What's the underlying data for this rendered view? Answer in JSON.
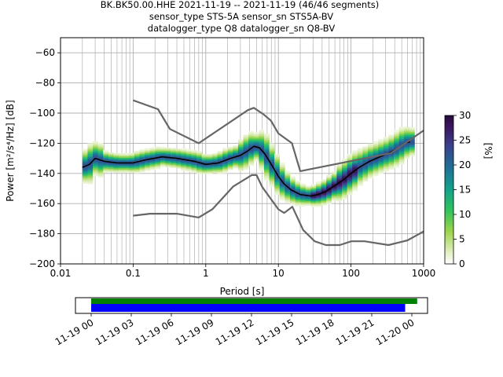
{
  "header": {
    "line1": "BK.BK50.00.HHE   2021-11-19 -- 2021-11-19  (46/46 segments)",
    "line2": "sensor_type STS-5A sensor_sn STS5A-BV",
    "line3": "datalogger_type Q8 datalogger_sn Q8-BV"
  },
  "chart_data": [
    {
      "type": "heatmap",
      "title": "",
      "xlabel": "Period [s]",
      "ylabel": "Power [m²/s⁴/Hz] [dB]",
      "xscale": "log",
      "xlim": [
        0.01,
        1000
      ],
      "ylim": [
        -200,
        -50
      ],
      "xticks": [
        0.01,
        0.1,
        1,
        10,
        100,
        1000
      ],
      "xtick_labels": [
        "0.01",
        "0.1",
        "1",
        "10",
        "100",
        "1000"
      ],
      "yticks": [
        -200,
        -180,
        -160,
        -140,
        -120,
        -100,
        -80,
        -60
      ],
      "ytick_labels": [
        "−200",
        "−180",
        "−160",
        "−140",
        "−120",
        "−100",
        "−80",
        "−60"
      ],
      "grid": true,
      "colorbar": {
        "label": "[%]",
        "range": [
          0,
          30
        ],
        "ticks": [
          0,
          5,
          10,
          15,
          20,
          25,
          30
        ],
        "tick_labels": [
          "0",
          "5",
          "10",
          "15",
          "20",
          "25",
          "30"
        ],
        "colormap": "pqlx"
      },
      "series": [
        {
          "kind": "mean",
          "color": "#000000",
          "x": [
            0.02,
            0.025,
            0.03,
            0.04,
            0.06,
            0.1,
            0.15,
            0.25,
            0.4,
            0.7,
            1.0,
            1.5,
            2.2,
            3.0,
            3.8,
            4.6,
            5.5,
            6.5,
            8,
            10,
            12,
            15,
            20,
            28,
            35,
            45,
            60,
            80,
            100,
            130,
            180,
            250,
            350,
            450,
            550,
            650
          ],
          "y": [
            -136,
            -134,
            -130,
            -132,
            -133,
            -133,
            -131,
            -129,
            -130,
            -132,
            -134,
            -133,
            -130,
            -128,
            -125,
            -122,
            -123,
            -127,
            -134,
            -142,
            -147,
            -151,
            -154,
            -155,
            -154,
            -152,
            -148,
            -144,
            -140,
            -136,
            -132,
            -129,
            -126,
            -123,
            -120,
            -119
          ]
        },
        {
          "kind": "noise-model-high",
          "color": "#666666",
          "x": [
            0.1,
            0.22,
            0.32,
            0.8,
            3.8,
            4.6,
            6.3,
            7.9,
            10,
            15.4,
            20,
            354.8,
            1000
          ],
          "y": [
            -91.5,
            -97.4,
            -110.5,
            -120,
            -98,
            -96.5,
            -101,
            -105,
            -113.5,
            -120,
            -138.5,
            -126.5,
            -111.5
          ]
        },
        {
          "kind": "noise-model-low",
          "color": "#666666",
          "x": [
            0.1,
            0.17,
            0.4,
            0.8,
            1.24,
            2.4,
            4.3,
            5.0,
            6.0,
            10,
            12,
            15.6,
            21.9,
            31.6,
            45,
            70,
            101,
            154,
            328,
            600,
            1000
          ],
          "y": [
            -168,
            -166.7,
            -166.7,
            -169.2,
            -163.7,
            -148.6,
            -141.1,
            -141.1,
            -149,
            -163.8,
            -166.2,
            -162.1,
            -177.5,
            -185,
            -187.5,
            -187.5,
            -185,
            -185,
            -187.5,
            -184.4,
            -178.5
          ]
        }
      ]
    },
    {
      "type": "bar",
      "title": "",
      "xlabel": "",
      "ylabel": "",
      "xlim": [
        "11-19 00",
        "11-20 00"
      ],
      "tick_labels": [
        "11-19 00",
        "11-19 03",
        "11-19 06",
        "11-19 09",
        "11-19 12",
        "11-19 15",
        "11-19 18",
        "11-19 21",
        "11-20 00"
      ],
      "series": [
        {
          "kind": "data-coverage",
          "color": "#008000",
          "start_hour": 0.0,
          "end_hour": 24.4
        },
        {
          "kind": "psd-coverage",
          "color": "#0000ff",
          "start_hour": 0.0,
          "end_hour": 23.5
        }
      ]
    }
  ]
}
